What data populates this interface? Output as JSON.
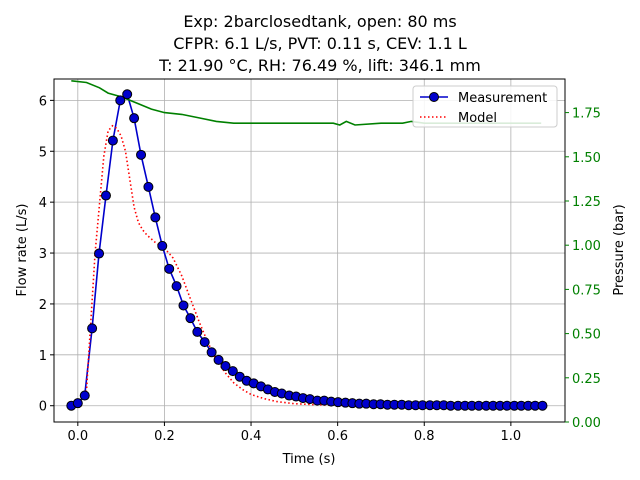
{
  "chart_data": {
    "type": "line",
    "title_lines": [
      "Exp: 2barclosedtank, open: 80 ms",
      "CFPR: 6.1 L/s, PVT: 0.11 s, CEV: 1.1 L",
      "T: 21.90 °C, RH: 76.49 %, lift: 346.1 mm"
    ],
    "xlabel": "Time (s)",
    "ylabel": "Flow rate (L/s)",
    "y2label": "Pressure (bar)",
    "xlim": [
      -0.055,
      1.125
    ],
    "ylim": [
      -0.32,
      6.42
    ],
    "y2lim": [
      0.0,
      1.94
    ],
    "xticks": [
      0.0,
      0.2,
      0.4,
      0.6,
      0.8,
      1.0
    ],
    "xtick_labels": [
      "0.0",
      "0.2",
      "0.4",
      "0.6",
      "0.8",
      "1.0"
    ],
    "yticks": [
      0,
      1,
      2,
      3,
      4,
      5,
      6
    ],
    "ytick_labels": [
      "0",
      "1",
      "2",
      "3",
      "4",
      "5",
      "6"
    ],
    "y2ticks": [
      0.0,
      0.25,
      0.5,
      0.75,
      1.0,
      1.25,
      1.5,
      1.75
    ],
    "y2tick_labels": [
      "0.00",
      "0.25",
      "0.50",
      "0.75",
      "1.00",
      "1.25",
      "1.50",
      "1.75"
    ],
    "grid": true,
    "legend": {
      "placement": "top-right",
      "entries": [
        "Measurement",
        "Model"
      ]
    },
    "colors": {
      "measurement": "#0000cc",
      "marker_fill": "#0000cc",
      "model": "#ff0000",
      "pressure": "#008000",
      "y2_axis": "#008000"
    },
    "series": [
      {
        "name": "Measurement",
        "axis": "left",
        "style": "line-with-circles",
        "x": [
          -0.015,
          0.0,
          0.016,
          0.033,
          0.049,
          0.065,
          0.081,
          0.098,
          0.114,
          0.13,
          0.146,
          0.163,
          0.179,
          0.195,
          0.211,
          0.228,
          0.244,
          0.26,
          0.276,
          0.293,
          0.309,
          0.325,
          0.341,
          0.358,
          0.374,
          0.39,
          0.406,
          0.423,
          0.439,
          0.455,
          0.471,
          0.488,
          0.504,
          0.52,
          0.536,
          0.553,
          0.569,
          0.585,
          0.601,
          0.618,
          0.634,
          0.65,
          0.666,
          0.683,
          0.699,
          0.715,
          0.731,
          0.748,
          0.764,
          0.78,
          0.796,
          0.813,
          0.829,
          0.845,
          0.861,
          0.878,
          0.894,
          0.91,
          0.926,
          0.943,
          0.959,
          0.975,
          0.991,
          1.008,
          1.024,
          1.04,
          1.056,
          1.073
        ],
        "y": [
          0.0,
          0.05,
          0.2,
          1.52,
          2.99,
          4.13,
          5.21,
          6.0,
          6.12,
          5.65,
          4.93,
          4.3,
          3.7,
          3.14,
          2.69,
          2.35,
          1.97,
          1.72,
          1.45,
          1.25,
          1.05,
          0.9,
          0.78,
          0.68,
          0.57,
          0.49,
          0.44,
          0.38,
          0.32,
          0.27,
          0.24,
          0.2,
          0.18,
          0.15,
          0.13,
          0.1,
          0.1,
          0.08,
          0.07,
          0.06,
          0.05,
          0.04,
          0.04,
          0.03,
          0.03,
          0.02,
          0.02,
          0.02,
          0.01,
          0.01,
          0.01,
          0.01,
          0.01,
          0.01,
          0.0,
          0.0,
          0.0,
          0.0,
          0.0,
          0.0,
          0.0,
          0.0,
          0.0,
          0.0,
          0.0,
          0.0,
          0.0,
          0.0
        ]
      },
      {
        "name": "Model",
        "axis": "left",
        "style": "dotted",
        "x": [
          0.0,
          0.02,
          0.04,
          0.06,
          0.07,
          0.08,
          0.09,
          0.1,
          0.11,
          0.12,
          0.13,
          0.14,
          0.15,
          0.16,
          0.18,
          0.2,
          0.22,
          0.24,
          0.26,
          0.28,
          0.3,
          0.32,
          0.34,
          0.36,
          0.38,
          0.4,
          0.43,
          0.46,
          0.5,
          0.55,
          0.6,
          0.65,
          0.7,
          0.75,
          0.8
        ],
        "y": [
          0.0,
          0.3,
          3.0,
          4.9,
          5.4,
          5.5,
          5.45,
          5.3,
          5.0,
          4.45,
          3.9,
          3.6,
          3.45,
          3.35,
          3.2,
          3.1,
          2.9,
          2.55,
          2.1,
          1.65,
          1.25,
          0.9,
          0.65,
          0.45,
          0.32,
          0.22,
          0.14,
          0.08,
          0.04,
          0.02,
          0.01,
          0.0,
          0.0,
          0.0,
          0.0
        ]
      },
      {
        "name": "Pressure",
        "axis": "right",
        "style": "solid",
        "x": [
          -0.015,
          0.02,
          0.05,
          0.07,
          0.1,
          0.12,
          0.14,
          0.17,
          0.2,
          0.24,
          0.28,
          0.32,
          0.36,
          0.4,
          0.45,
          0.5,
          0.55,
          0.59,
          0.605,
          0.62,
          0.64,
          0.7,
          0.75,
          0.77,
          0.8,
          0.84,
          0.9,
          1.0,
          1.07
        ],
        "y": [
          1.93,
          1.92,
          1.89,
          1.86,
          1.84,
          1.82,
          1.8,
          1.77,
          1.75,
          1.74,
          1.72,
          1.7,
          1.69,
          1.69,
          1.69,
          1.69,
          1.69,
          1.69,
          1.68,
          1.7,
          1.68,
          1.69,
          1.69,
          1.7,
          1.69,
          1.69,
          1.69,
          1.69,
          1.69
        ]
      }
    ]
  }
}
